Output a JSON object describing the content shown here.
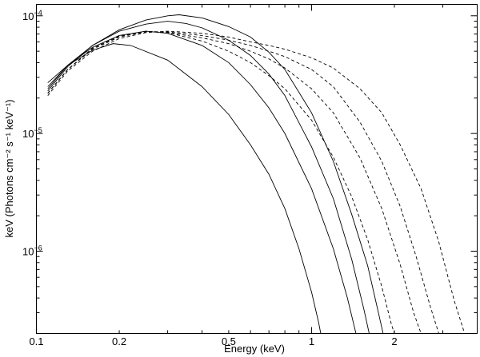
{
  "chart_data": {
    "type": "line",
    "title": "",
    "xlabel": "Energy (keV)",
    "ylabel": "keV (Photons cm⁻² s⁻¹ keV⁻¹)",
    "xscale": "log",
    "yscale": "log",
    "xlim": [
      0.1,
      4.0
    ],
    "ylim": [
      2e-07,
      0.000125
    ],
    "grid": false,
    "legend": "none",
    "x_ticks": [
      {
        "value": 0.1,
        "label": "0.1"
      },
      {
        "value": 0.2,
        "label": "0.2"
      },
      {
        "value": 0.5,
        "label": "0.5"
      },
      {
        "value": 1,
        "label": "1"
      },
      {
        "value": 2,
        "label": "2"
      }
    ],
    "y_ticks": [
      {
        "value": 0.0001,
        "base": "10",
        "exp": "−4"
      },
      {
        "value": 1e-05,
        "base": "10",
        "exp": "−5"
      },
      {
        "value": 1e-06,
        "base": "10",
        "exp": "−6"
      }
    ],
    "series": [
      {
        "style": "solid",
        "points": [
          [
            0.11,
            2.7e-05
          ],
          [
            0.13,
            3.8e-05
          ],
          [
            0.16,
            5.1e-05
          ],
          [
            0.19,
            5.8e-05
          ],
          [
            0.22,
            5.6e-05
          ],
          [
            0.3,
            4.2e-05
          ],
          [
            0.4,
            2.5e-05
          ],
          [
            0.5,
            1.45e-05
          ],
          [
            0.6,
            8e-06
          ],
          [
            0.7,
            4.5e-06
          ],
          [
            0.8,
            2.3e-06
          ],
          [
            0.9,
            1.05e-06
          ],
          [
            1.0,
            4.5e-07
          ],
          [
            1.06,
            2.5e-07
          ],
          [
            1.08,
            2e-07
          ]
        ]
      },
      {
        "style": "solid",
        "points": [
          [
            0.11,
            2.5e-05
          ],
          [
            0.13,
            3.8e-05
          ],
          [
            0.16,
            5.4e-05
          ],
          [
            0.2,
            6.8e-05
          ],
          [
            0.25,
            7.4e-05
          ],
          [
            0.3,
            7.1e-05
          ],
          [
            0.4,
            5.6e-05
          ],
          [
            0.5,
            4e-05
          ],
          [
            0.6,
            2.6e-05
          ],
          [
            0.7,
            1.65e-05
          ],
          [
            0.8,
            1e-05
          ],
          [
            1.0,
            3.4e-06
          ],
          [
            1.2,
            1.05e-06
          ],
          [
            1.35,
            4e-07
          ],
          [
            1.45,
            2e-07
          ]
        ]
      },
      {
        "style": "solid",
        "points": [
          [
            0.11,
            2.4e-05
          ],
          [
            0.13,
            3.8e-05
          ],
          [
            0.16,
            5.6e-05
          ],
          [
            0.2,
            7.4e-05
          ],
          [
            0.25,
            8.5e-05
          ],
          [
            0.3,
            9e-05
          ],
          [
            0.35,
            8.6e-05
          ],
          [
            0.4,
            7.9e-05
          ],
          [
            0.5,
            6.2e-05
          ],
          [
            0.6,
            4.6e-05
          ],
          [
            0.7,
            3.2e-05
          ],
          [
            0.8,
            2.1e-05
          ],
          [
            1.0,
            7.7e-06
          ],
          [
            1.2,
            2.8e-06
          ],
          [
            1.4,
            8.5e-07
          ],
          [
            1.55,
            3.2e-07
          ],
          [
            1.62,
            2e-07
          ]
        ]
      },
      {
        "style": "solid",
        "points": [
          [
            0.11,
            2.3e-05
          ],
          [
            0.13,
            3.7e-05
          ],
          [
            0.16,
            5.6e-05
          ],
          [
            0.2,
            7.6e-05
          ],
          [
            0.25,
            9.2e-05
          ],
          [
            0.3,
            0.0001
          ],
          [
            0.33,
            0.000102
          ],
          [
            0.4,
            9.6e-05
          ],
          [
            0.5,
            8.1e-05
          ],
          [
            0.6,
            6.6e-05
          ],
          [
            0.7,
            4.9e-05
          ],
          [
            0.8,
            3.5e-05
          ],
          [
            1.0,
            1.5e-05
          ],
          [
            1.2,
            5.8e-06
          ],
          [
            1.4,
            2.05e-06
          ],
          [
            1.6,
            7.5e-07
          ],
          [
            1.75,
            3e-07
          ],
          [
            1.82,
            2e-07
          ]
        ]
      },
      {
        "style": "dashed",
        "points": [
          [
            0.11,
            2.2e-05
          ],
          [
            0.13,
            3.5e-05
          ],
          [
            0.16,
            5.3e-05
          ],
          [
            0.2,
            6.7e-05
          ],
          [
            0.25,
            7.4e-05
          ],
          [
            0.3,
            7.2e-05
          ],
          [
            0.4,
            6.1e-05
          ],
          [
            0.5,
            5e-05
          ],
          [
            0.6,
            4e-05
          ],
          [
            0.7,
            3.1e-05
          ],
          [
            0.8,
            2.4e-05
          ],
          [
            1.0,
            1.3e-05
          ],
          [
            1.2,
            6.3e-06
          ],
          [
            1.4,
            2.9e-06
          ],
          [
            1.6,
            1.25e-06
          ],
          [
            1.8,
            5e-07
          ],
          [
            1.95,
            2.4e-07
          ],
          [
            2.0,
            2e-07
          ]
        ]
      },
      {
        "style": "dashed",
        "points": [
          [
            0.11,
            2.2e-05
          ],
          [
            0.13,
            3.5e-05
          ],
          [
            0.16,
            5.3e-05
          ],
          [
            0.2,
            6.7e-05
          ],
          [
            0.25,
            7.4e-05
          ],
          [
            0.3,
            7.2e-05
          ],
          [
            0.4,
            6.5e-05
          ],
          [
            0.5,
            5.8e-05
          ],
          [
            0.6,
            5e-05
          ],
          [
            0.7,
            4.3e-05
          ],
          [
            0.8,
            3.6e-05
          ],
          [
            1.0,
            2.4e-05
          ],
          [
            1.2,
            1.5e-05
          ],
          [
            1.5,
            6.2e-06
          ],
          [
            1.8,
            2.3e-06
          ],
          [
            2.1,
            7.7e-07
          ],
          [
            2.35,
            3e-07
          ],
          [
            2.5,
            2e-07
          ]
        ]
      },
      {
        "style": "dashed",
        "points": [
          [
            0.11,
            2.2e-05
          ],
          [
            0.13,
            3.5e-05
          ],
          [
            0.16,
            5.2e-05
          ],
          [
            0.2,
            6.6e-05
          ],
          [
            0.25,
            7.3e-05
          ],
          [
            0.3,
            7.3e-05
          ],
          [
            0.4,
            6.8e-05
          ],
          [
            0.5,
            6.2e-05
          ],
          [
            0.6,
            5.6e-05
          ],
          [
            0.7,
            5e-05
          ],
          [
            0.8,
            4.5e-05
          ],
          [
            1.0,
            3.5e-05
          ],
          [
            1.2,
            2.5e-05
          ],
          [
            1.5,
            1.25e-05
          ],
          [
            1.8,
            5.8e-06
          ],
          [
            2.1,
            2.4e-06
          ],
          [
            2.4,
            9e-07
          ],
          [
            2.7,
            3.4e-07
          ],
          [
            2.9,
            2e-07
          ]
        ]
      },
      {
        "style": "dashed",
        "points": [
          [
            0.11,
            2.1e-05
          ],
          [
            0.13,
            3.4e-05
          ],
          [
            0.16,
            5e-05
          ],
          [
            0.2,
            6.4e-05
          ],
          [
            0.25,
            7.2e-05
          ],
          [
            0.3,
            7.4e-05
          ],
          [
            0.4,
            7.1e-05
          ],
          [
            0.5,
            6.6e-05
          ],
          [
            0.6,
            6e-05
          ],
          [
            0.7,
            5.6e-05
          ],
          [
            0.8,
            5.2e-05
          ],
          [
            1.0,
            4.4e-05
          ],
          [
            1.2,
            3.6e-05
          ],
          [
            1.5,
            2.4e-05
          ],
          [
            1.8,
            1.5e-05
          ],
          [
            2.1,
            8e-06
          ],
          [
            2.5,
            3.4e-06
          ],
          [
            2.9,
            1.2e-06
          ],
          [
            3.3,
            3.8e-07
          ],
          [
            3.6,
            2e-07
          ]
        ]
      }
    ]
  }
}
